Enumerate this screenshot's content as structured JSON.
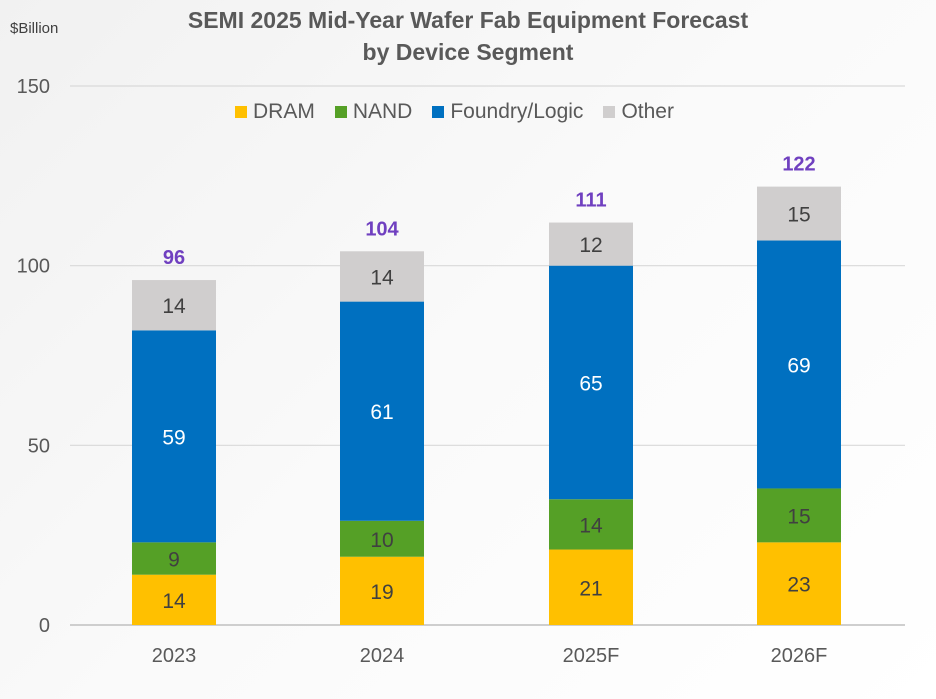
{
  "chart_data": {
    "type": "bar",
    "stacked": true,
    "title": "SEMI 2025 Mid-Year Wafer Fab Equipment Forecast",
    "subtitle": "by Device Segment",
    "ylabel": "$Billion",
    "xlabel": "",
    "ylim": [
      0,
      150
    ],
    "yticks": [
      0,
      50,
      100,
      150
    ],
    "grid": true,
    "legend_position": "top",
    "categories": [
      "2023",
      "2024",
      "2025F",
      "2026F"
    ],
    "series": [
      {
        "name": "DRAM",
        "color": "#FFC000",
        "values": [
          14,
          19,
          21,
          23
        ]
      },
      {
        "name": "NAND",
        "color": "#55A026",
        "values": [
          9,
          10,
          14,
          15
        ]
      },
      {
        "name": "Foundry/Logic",
        "color": "#0070C0",
        "values": [
          59,
          61,
          65,
          69
        ]
      },
      {
        "name": "Other",
        "color": "#D0CECE",
        "values": [
          14,
          14,
          12,
          15
        ]
      }
    ],
    "totals": [
      96,
      104,
      111,
      122
    ],
    "total_color": "#7040C0"
  }
}
